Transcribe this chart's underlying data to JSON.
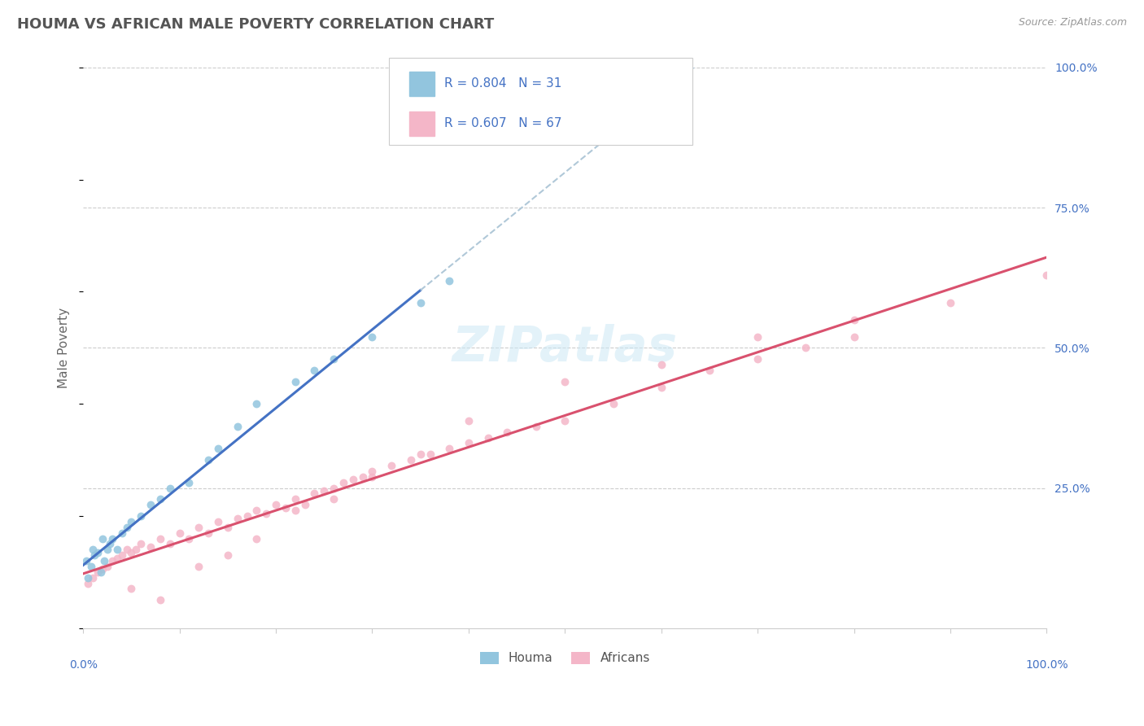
{
  "title": "HOUMA VS AFRICAN MALE POVERTY CORRELATION CHART",
  "source": "Source: ZipAtlas.com",
  "ylabel": "Male Poverty",
  "legend_label_houma": "Houma",
  "legend_label_africans": "Africans",
  "houma_color": "#92c5de",
  "african_color": "#f4b6c8",
  "houma_R": 0.804,
  "houma_N": 31,
  "african_R": 0.607,
  "african_N": 67,
  "background_color": "#ffffff",
  "grid_color": "#cccccc",
  "title_color": "#555555",
  "axis_label_color": "#4472c4",
  "regression_blue": "#4472c4",
  "regression_pink": "#d9516e",
  "regression_dashed": "#b0c8d8",
  "houma_x": [
    0.3,
    0.5,
    0.8,
    1.0,
    1.2,
    1.5,
    1.8,
    2.0,
    2.2,
    2.5,
    2.8,
    3.0,
    3.5,
    4.0,
    4.5,
    5.0,
    6.0,
    7.0,
    8.0,
    9.0,
    11.0,
    13.0,
    14.0,
    16.0,
    18.0,
    22.0,
    24.0,
    26.0,
    30.0,
    35.0,
    38.0
  ],
  "houma_y": [
    12.0,
    9.0,
    11.0,
    14.0,
    13.0,
    13.5,
    10.0,
    16.0,
    12.0,
    14.0,
    15.0,
    16.0,
    14.0,
    17.0,
    18.0,
    19.0,
    20.0,
    22.0,
    23.0,
    25.0,
    26.0,
    30.0,
    32.0,
    36.0,
    40.0,
    44.0,
    46.0,
    48.0,
    52.0,
    58.0,
    62.0
  ],
  "african_x": [
    0.5,
    1.0,
    1.5,
    2.0,
    2.5,
    3.0,
    3.5,
    4.0,
    4.5,
    5.0,
    5.5,
    6.0,
    7.0,
    8.0,
    9.0,
    10.0,
    11.0,
    12.0,
    13.0,
    14.0,
    15.0,
    16.0,
    17.0,
    18.0,
    19.0,
    20.0,
    21.0,
    22.0,
    23.0,
    24.0,
    25.0,
    26.0,
    27.0,
    28.0,
    29.0,
    30.0,
    32.0,
    34.0,
    36.0,
    38.0,
    40.0,
    42.0,
    44.0,
    47.0,
    50.0,
    55.0,
    60.0,
    65.0,
    70.0,
    75.0,
    80.0,
    5.0,
    8.0,
    12.0,
    15.0,
    18.0,
    22.0,
    26.0,
    30.0,
    35.0,
    40.0,
    50.0,
    60.0,
    70.0,
    80.0,
    90.0,
    100.0
  ],
  "african_y": [
    8.0,
    9.0,
    10.0,
    10.5,
    11.0,
    12.0,
    12.5,
    13.0,
    14.0,
    13.5,
    14.0,
    15.0,
    14.5,
    16.0,
    15.0,
    17.0,
    16.0,
    18.0,
    17.0,
    19.0,
    18.0,
    19.5,
    20.0,
    21.0,
    20.5,
    22.0,
    21.5,
    23.0,
    22.0,
    24.0,
    24.5,
    25.0,
    26.0,
    26.5,
    27.0,
    28.0,
    29.0,
    30.0,
    31.0,
    32.0,
    33.0,
    34.0,
    35.0,
    36.0,
    37.0,
    40.0,
    43.0,
    46.0,
    48.0,
    50.0,
    52.0,
    7.0,
    5.0,
    11.0,
    13.0,
    16.0,
    21.0,
    23.0,
    27.0,
    31.0,
    37.0,
    44.0,
    47.0,
    52.0,
    55.0,
    58.0,
    63.0
  ],
  "xlim_min": 0,
  "xlim_max": 100,
  "ylim_min": 0,
  "ylim_max": 100,
  "grid_yticks": [
    25,
    50,
    75,
    100
  ],
  "blue_line_solid_end": 35,
  "blue_line_dashed_end": 100,
  "watermark": "ZIPatlas"
}
